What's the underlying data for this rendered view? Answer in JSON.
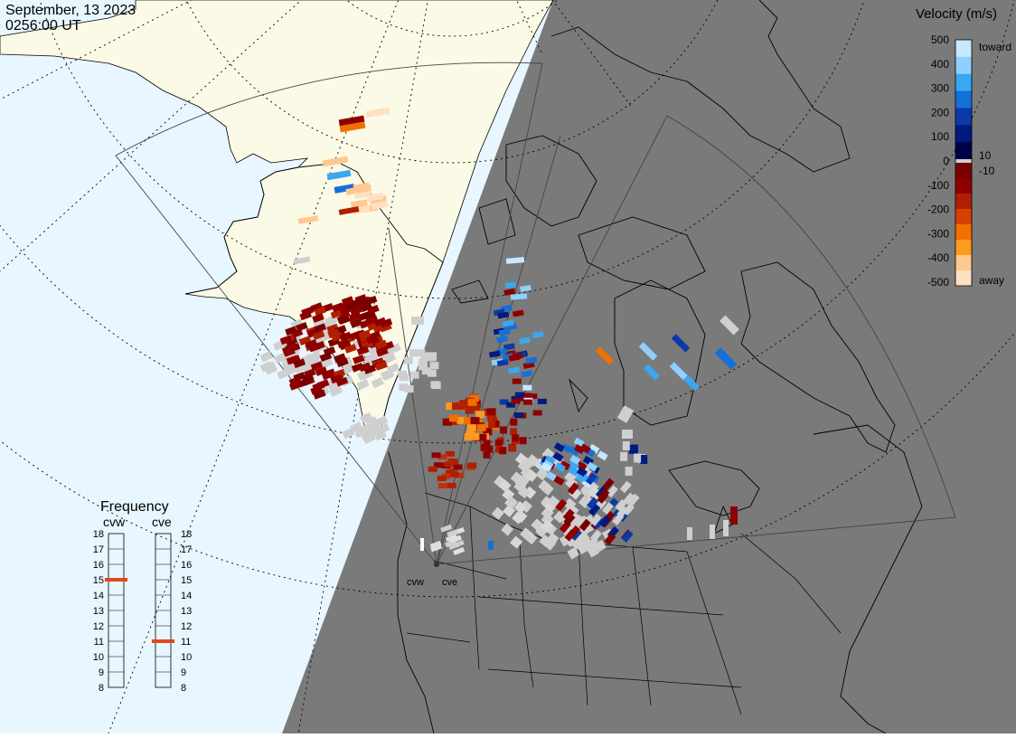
{
  "header": {
    "date": "September, 13 2023",
    "time": "0256:00 UT"
  },
  "colors": {
    "day_bg": "#e8f6ff",
    "night_bg": "#7a7a7a",
    "land_day": "#fbfae6",
    "ground_scatter": "#cfcfcf",
    "freq_marker": "#e04a1a"
  },
  "velocity_scale": {
    "title": "Velocity (m/s)",
    "ticks": [
      "500",
      "400",
      "300",
      "200",
      "100",
      "0",
      "-100",
      "-200",
      "-300",
      "-400",
      "-500"
    ],
    "small_ticks": [
      "10",
      "-10"
    ],
    "toward_label": "toward",
    "away_label": "away",
    "colors_top_to_bottom": [
      "#c8e8ff",
      "#8fd0ff",
      "#3aa8f0",
      "#1470d8",
      "#0a3aa8",
      "#001a80",
      "#00004a",
      "#7a0000",
      "#8e0000",
      "#b02000",
      "#d84000",
      "#f07000",
      "#ff9a20",
      "#ffc890",
      "#ffe0c0"
    ]
  },
  "frequency": {
    "title": "Frequency",
    "radars": [
      {
        "name": "cvw",
        "value": 15
      },
      {
        "name": "cve",
        "value": 11
      }
    ],
    "ticks": [
      "18",
      "17",
      "16",
      "15",
      "14",
      "13",
      "12",
      "11",
      "10",
      "9",
      "8"
    ]
  },
  "radar_sites": [
    "cvw",
    "cve"
  ]
}
